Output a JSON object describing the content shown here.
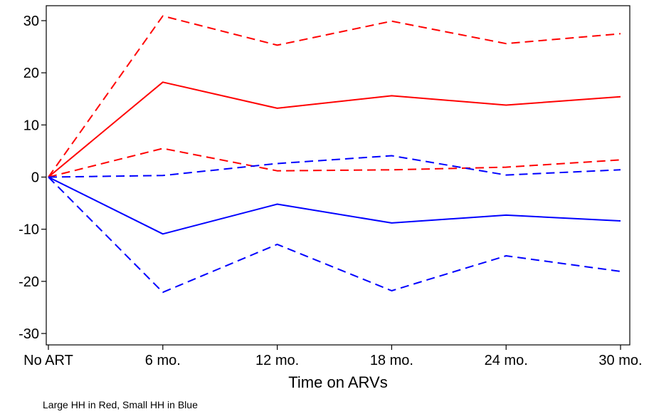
{
  "chart_data": {
    "type": "line",
    "categories": [
      "No ART",
      "6 mo.",
      "12 mo.",
      "18 mo.",
      "24 mo.",
      "30 mo."
    ],
    "xlabel": "Time on ARVs",
    "ylabel": "",
    "ylim": [
      -32,
      32
    ],
    "yticks": [
      -30,
      -20,
      -10,
      0,
      10,
      20,
      30
    ],
    "grid": false,
    "series": [
      {
        "color": "#ff0000",
        "style": "solid",
        "values": [
          0,
          18.2,
          13.2,
          15.6,
          13.8,
          15.4
        ]
      },
      {
        "color": "#ff0000",
        "style": "dashed",
        "values": [
          0,
          30.9,
          25.3,
          29.9,
          25.6,
          27.5
        ]
      },
      {
        "color": "#ff0000",
        "style": "dashed",
        "values": [
          0,
          5.5,
          1.2,
          1.4,
          1.9,
          3.3
        ]
      },
      {
        "color": "#0000ff",
        "style": "solid",
        "values": [
          0,
          -10.9,
          -5.2,
          -8.8,
          -7.3,
          -8.4
        ]
      },
      {
        "color": "#0000ff",
        "style": "dashed",
        "values": [
          0,
          0.3,
          2.6,
          4.1,
          0.4,
          1.4
        ]
      },
      {
        "color": "#0000ff",
        "style": "dashed",
        "values": [
          0,
          -22.1,
          -12.9,
          -21.8,
          -15.1,
          -18.1
        ]
      }
    ]
  },
  "note": "Large HH in Red, Small HH in Blue"
}
